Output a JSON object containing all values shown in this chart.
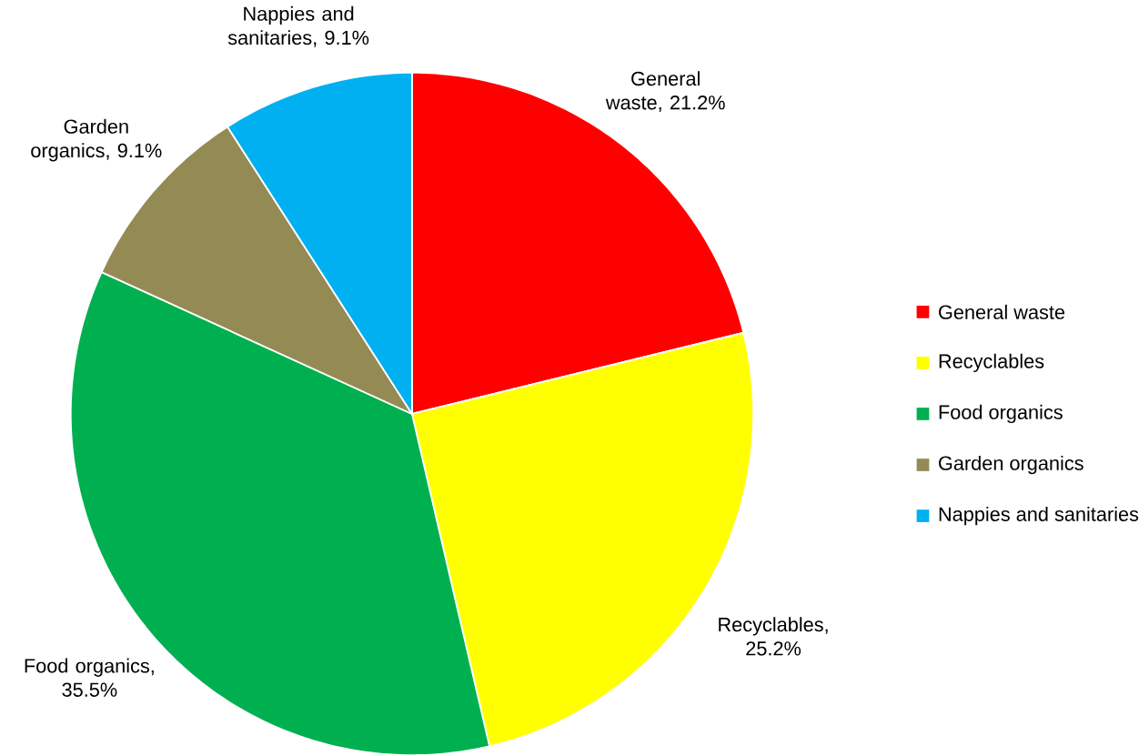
{
  "chart_data": {
    "type": "pie",
    "categories": [
      "General waste",
      "Recyclables",
      "Food organics",
      "Garden organics",
      "Nappies and sanitaries"
    ],
    "values": [
      21.2,
      25.2,
      35.5,
      9.1,
      9.1
    ],
    "colors": [
      "#ff0000",
      "#ffff00",
      "#00b050",
      "#948a54",
      "#00b0f0"
    ],
    "value_labels": [
      "General waste, 21.2%",
      "Recyclables, 25.2%",
      "Food organics, 35.5%",
      "Garden organics, 9.1%",
      "Nappies and sanitaries, 9.1%"
    ],
    "legend": "right"
  }
}
